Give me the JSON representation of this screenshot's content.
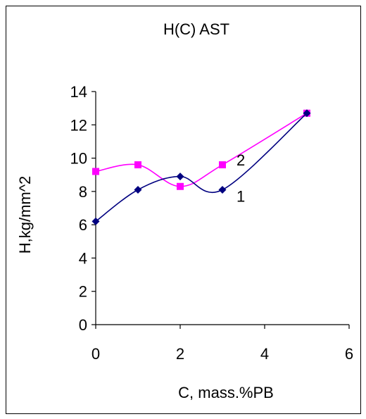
{
  "chart_data": {
    "type": "line",
    "title": "H(C) AST",
    "xlabel": "C, mass.%PB",
    "ylabel": "H,kg/mm^2",
    "xlim": [
      0,
      6
    ],
    "ylim": [
      0,
      14
    ],
    "xticks": [
      0,
      2,
      4,
      6
    ],
    "yticks": [
      0,
      2,
      4,
      6,
      8,
      10,
      12,
      14
    ],
    "grid": false,
    "series": [
      {
        "label": "1",
        "color": "#000080",
        "marker": "diamond",
        "x": [
          0,
          1,
          2,
          3,
          5
        ],
        "y": [
          6.2,
          8.1,
          8.9,
          8.1,
          12.7
        ]
      },
      {
        "label": "2",
        "color": "#ff00ff",
        "marker": "square",
        "x": [
          0,
          1,
          2,
          3,
          5
        ],
        "y": [
          9.2,
          9.6,
          8.3,
          9.6,
          12.7
        ]
      }
    ]
  }
}
